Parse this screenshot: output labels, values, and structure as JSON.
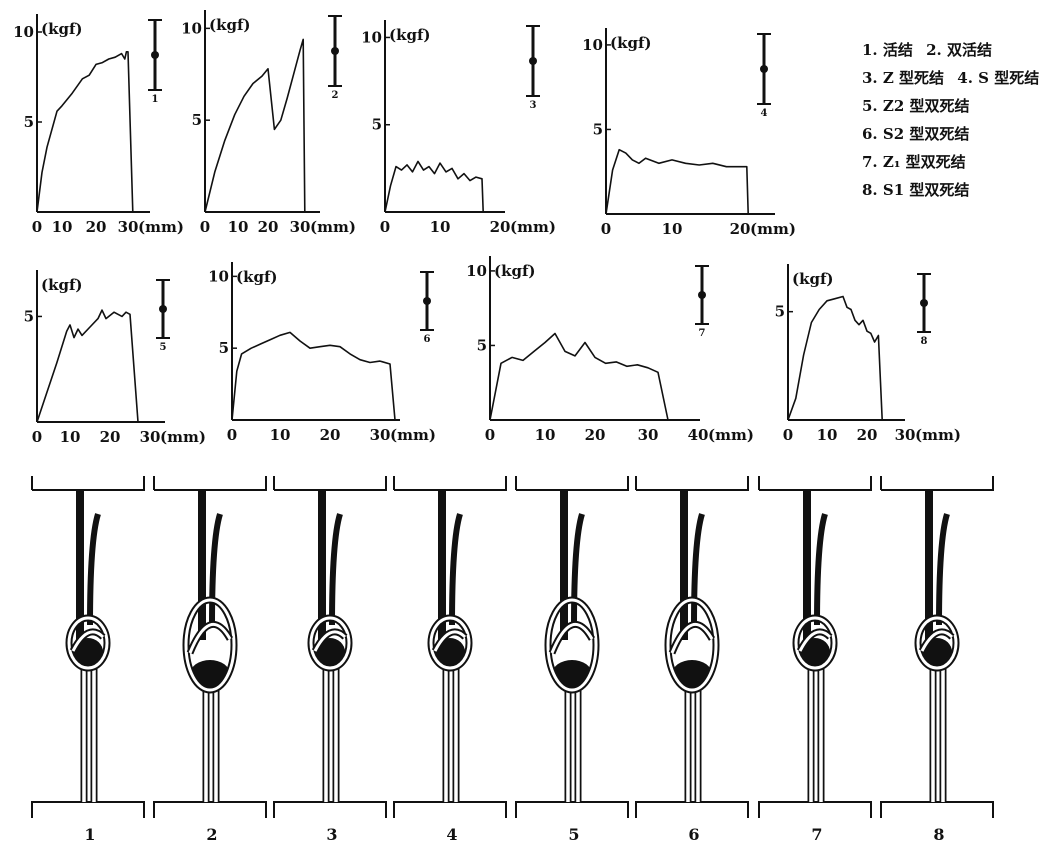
{
  "legend": [
    "1. 活结",
    "2. 双活结",
    "3. Z 型死结",
    "4. S 型死结",
    "5. Z2 型双死结",
    "6. S2 型双死结",
    "7. Z₁ 型双死结",
    "8. S1 型双死结"
  ],
  "knot_labels": [
    "1",
    "2",
    "3",
    "4",
    "5",
    "6",
    "7",
    "8"
  ],
  "colors": {
    "ink": "#111111",
    "paper": "#ffffff"
  },
  "chart_data": [
    {
      "type": "line",
      "ylabel": "(kgf)",
      "xlabel": "(mm)",
      "panel_label": "1",
      "xticks": [
        "0",
        "10",
        "20",
        "30"
      ],
      "xtick_values": [
        0,
        10,
        20,
        30
      ],
      "yticks": [
        "5",
        "10"
      ],
      "ytick_values": [
        5,
        10
      ],
      "xlim": [
        0,
        35
      ],
      "ylim": [
        0,
        11
      ],
      "series": [
        {
          "x": [
            0,
            2,
            4,
            6,
            8,
            10,
            13,
            16,
            18,
            20,
            22,
            24,
            26,
            28,
            29,
            29.5,
            30,
            31.5
          ],
          "y": [
            0,
            2.2,
            3.6,
            4.6,
            5.6,
            5.9,
            6.6,
            7.4,
            7.6,
            8.2,
            8.3,
            8.5,
            8.6,
            8.8,
            8.5,
            8.9,
            8.9,
            0
          ]
        }
      ]
    },
    {
      "type": "line",
      "ylabel": "(kgf)",
      "xlabel": "(mm)",
      "panel_label": "2",
      "xticks": [
        "0",
        "10",
        "20",
        "30"
      ],
      "xtick_values": [
        0,
        10,
        20,
        30
      ],
      "yticks": [
        "5",
        "10"
      ],
      "ytick_values": [
        5,
        10
      ],
      "xlim": [
        0,
        37
      ],
      "ylim": [
        0,
        11
      ],
      "series": [
        {
          "x": [
            0,
            3,
            6,
            9,
            12,
            15,
            18,
            20,
            22,
            24,
            26,
            28,
            30,
            31,
            31.5
          ],
          "y": [
            0,
            2.2,
            3.9,
            5.3,
            6.3,
            7.0,
            7.4,
            7.8,
            4.5,
            5.0,
            6.2,
            7.5,
            8.8,
            9.4,
            0
          ]
        }
      ]
    },
    {
      "type": "line",
      "ylabel": "(kgf)",
      "xlabel": "(mm)",
      "panel_label": "3",
      "xticks": [
        "0",
        "10",
        "20"
      ],
      "xtick_values": [
        0,
        10,
        20
      ],
      "yticks": [
        "5",
        "10"
      ],
      "ytick_values": [
        5,
        10
      ],
      "xlim": [
        0,
        22
      ],
      "ylim": [
        0,
        11
      ],
      "series": [
        {
          "x": [
            0,
            1,
            2,
            3,
            4,
            5,
            6,
            7,
            8,
            9,
            10,
            11,
            12,
            13,
            14,
            15,
            16,
            17,
            17.2
          ],
          "y": [
            0,
            1.5,
            2.6,
            2.4,
            2.7,
            2.3,
            2.9,
            2.4,
            2.6,
            2.2,
            2.8,
            2.3,
            2.5,
            1.9,
            2.2,
            1.8,
            2.0,
            1.9,
            0
          ]
        }
      ]
    },
    {
      "type": "line",
      "ylabel": "(kgf)",
      "xlabel": "(mm)",
      "panel_label": "4",
      "xticks": [
        "0",
        "10",
        "20"
      ],
      "xtick_values": [
        0,
        10,
        20
      ],
      "yticks": [
        "5",
        "10"
      ],
      "ytick_values": [
        5,
        10
      ],
      "xlim": [
        0,
        24
      ],
      "ylim": [
        0,
        11
      ],
      "series": [
        {
          "x": [
            0,
            1,
            2,
            3,
            4,
            5,
            6,
            8,
            10,
            12,
            14,
            16,
            18,
            20,
            21,
            21.2
          ],
          "y": [
            0,
            2.6,
            3.8,
            3.6,
            3.2,
            3.0,
            3.3,
            3.0,
            3.2,
            3.0,
            2.9,
            3.0,
            2.8,
            2.8,
            2.8,
            0
          ]
        }
      ]
    },
    {
      "type": "line",
      "ylabel": "(kgf)",
      "xlabel": "(mm)",
      "panel_label": "5",
      "xticks": [
        "0",
        "10",
        "20",
        "30"
      ],
      "xtick_values": [
        0,
        10,
        20,
        30
      ],
      "yticks": [
        "5"
      ],
      "ytick_values": [
        5
      ],
      "xlim": [
        0,
        31
      ],
      "ylim": [
        0,
        7.2
      ],
      "series": [
        {
          "x": [
            0,
            3,
            6,
            9,
            10,
            11,
            12,
            13,
            15,
            17,
            18,
            19,
            21,
            23,
            24,
            25,
            27
          ],
          "y": [
            0,
            1.4,
            2.8,
            4.3,
            4.6,
            4.0,
            4.4,
            4.1,
            4.5,
            4.9,
            5.3,
            4.9,
            5.2,
            5.0,
            5.2,
            5.1,
            0
          ]
        }
      ]
    },
    {
      "type": "line",
      "ylabel": "(kgf)",
      "xlabel": "(mm)",
      "panel_label": "6",
      "xticks": [
        "0",
        "10",
        "20",
        "30"
      ],
      "xtick_values": [
        0,
        10,
        20,
        30
      ],
      "yticks": [
        "5",
        "10"
      ],
      "ytick_values": [
        5,
        10
      ],
      "xlim": [
        0,
        37
      ],
      "ylim": [
        0,
        11
      ],
      "series": [
        {
          "x": [
            0,
            1,
            2,
            4,
            6,
            8,
            10,
            12,
            14,
            16,
            18,
            20,
            22,
            24,
            26,
            28,
            30,
            32,
            33
          ],
          "y": [
            0,
            3.4,
            4.6,
            5.0,
            5.3,
            5.6,
            5.9,
            6.1,
            5.5,
            5.0,
            5.1,
            5.2,
            5.1,
            4.6,
            4.2,
            4.0,
            4.1,
            3.9,
            0
          ]
        }
      ]
    },
    {
      "type": "line",
      "ylabel": "(kgf)",
      "xlabel": "(mm)",
      "panel_label": "7",
      "xticks": [
        "0",
        "10",
        "20",
        "30",
        "40"
      ],
      "xtick_values": [
        0,
        10,
        20,
        30,
        40
      ],
      "yticks": [
        "5",
        "10"
      ],
      "ytick_values": [
        5,
        10
      ],
      "xlim": [
        0,
        46
      ],
      "ylim": [
        0,
        11
      ],
      "series": [
        {
          "x": [
            0,
            2,
            4,
            6,
            8,
            10,
            12,
            14,
            16,
            18,
            20,
            22,
            24,
            26,
            28,
            30,
            32,
            34
          ],
          "y": [
            0,
            3.8,
            4.2,
            4.0,
            4.6,
            5.2,
            5.8,
            4.6,
            4.3,
            5.2,
            4.2,
            3.8,
            3.9,
            3.6,
            3.7,
            3.5,
            3.2,
            0
          ]
        }
      ]
    },
    {
      "type": "line",
      "ylabel": "(kgf)",
      "xlabel": "(mm)",
      "panel_label": "8",
      "xticks": [
        "0",
        "10",
        "20",
        "30"
      ],
      "xtick_values": [
        0,
        10,
        20,
        30
      ],
      "yticks": [
        "5"
      ],
      "ytick_values": [
        5
      ],
      "xlim": [
        0,
        33
      ],
      "ylim": [
        0,
        7.2
      ],
      "series": [
        {
          "x": [
            0,
            2,
            4,
            6,
            8,
            10,
            12,
            14,
            15,
            16,
            17,
            18,
            19,
            20,
            21,
            22,
            23,
            24
          ],
          "y": [
            0,
            1.0,
            3.0,
            4.5,
            5.1,
            5.5,
            5.6,
            5.7,
            5.2,
            5.1,
            4.6,
            4.4,
            4.6,
            4.1,
            4.0,
            3.6,
            3.9,
            0
          ]
        }
      ]
    }
  ]
}
